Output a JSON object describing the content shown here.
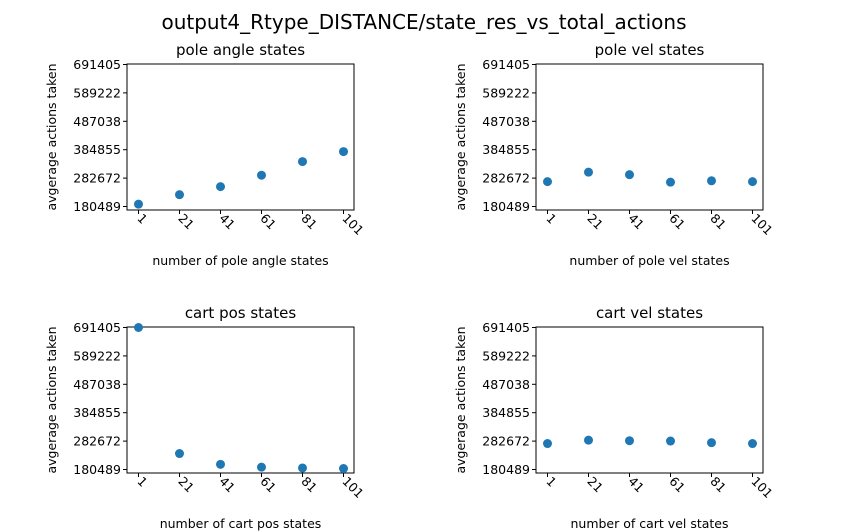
{
  "chart_data": {
    "title": "output4_Rtype_DISTANCE/state_res_vs_total_actions",
    "marker_color": "#1f77b4",
    "panels": [
      {
        "type": "scatter",
        "title": "pole angle states",
        "xlabel": "number of pole angle states",
        "ylabel": "avgerage actions taken",
        "x": [
          "1",
          "21",
          "41",
          "61",
          "81",
          "101"
        ],
        "y": [
          189000,
          223000,
          252000,
          293000,
          342000,
          378000
        ],
        "yticks": [
          "180489",
          "282672",
          "384855",
          "487038",
          "589222",
          "691405"
        ],
        "ylim": [
          180489,
          691405
        ]
      },
      {
        "type": "scatter",
        "title": "pole vel states",
        "xlabel": "number of pole vel states",
        "ylabel": "avgerage actions taken",
        "x": [
          "1",
          "21",
          "41",
          "61",
          "81",
          "101"
        ],
        "y": [
          270000,
          304000,
          295000,
          268000,
          273000,
          270000
        ],
        "yticks": [
          "180489",
          "282672",
          "384855",
          "487038",
          "589222",
          "691405"
        ],
        "ylim": [
          180489,
          691405
        ]
      },
      {
        "type": "scatter",
        "title": "cart pos states",
        "xlabel": "number of cart pos states",
        "ylabel": "avgerage actions taken",
        "x": [
          "1",
          "21",
          "41",
          "61",
          "81",
          "101"
        ],
        "y": [
          691405,
          238000,
          199000,
          189000,
          186000,
          184000
        ],
        "yticks": [
          "180489",
          "282672",
          "384855",
          "487038",
          "589222",
          "691405"
        ],
        "ylim": [
          180489,
          691405
        ]
      },
      {
        "type": "scatter",
        "title": "cart vel states",
        "xlabel": "number of cart vel states",
        "ylabel": "avgerage actions taken",
        "x": [
          "1",
          "21",
          "41",
          "61",
          "81",
          "101"
        ],
        "y": [
          274000,
          286000,
          284000,
          283000,
          277000,
          274000
        ],
        "yticks": [
          "180489",
          "282672",
          "384855",
          "487038",
          "589222",
          "691405"
        ],
        "ylim": [
          180489,
          691405
        ]
      }
    ]
  }
}
